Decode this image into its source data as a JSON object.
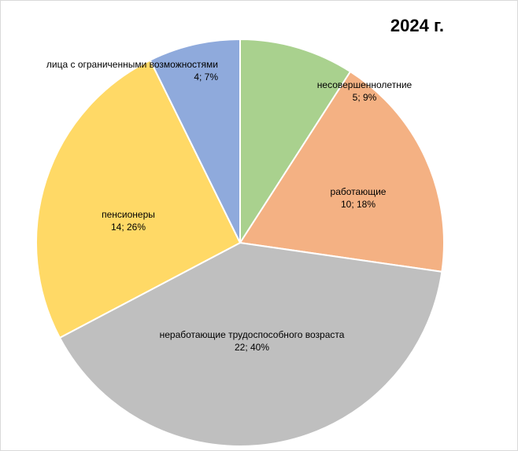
{
  "chart_data": {
    "type": "pie",
    "title": "2024 г.",
    "start_angle_deg": 0,
    "direction": "clockwise",
    "slices": [
      {
        "label": "несовершеннолетние",
        "value": 5,
        "percent": "9%",
        "color": "#a9d18e"
      },
      {
        "label": "работающие",
        "value": 10,
        "percent": "18%",
        "color": "#f4b183"
      },
      {
        "label": "неработающие трудоспособного возраста",
        "value": 22,
        "percent": "40%",
        "color": "#bfbfbf"
      },
      {
        "label": "пенсионеры",
        "value": 14,
        "percent": "26%",
        "color": "#ffd966"
      },
      {
        "label": "лица с ограниченными возможностями",
        "value": 4,
        "percent": "7%",
        "color": "#8faadc"
      }
    ]
  }
}
